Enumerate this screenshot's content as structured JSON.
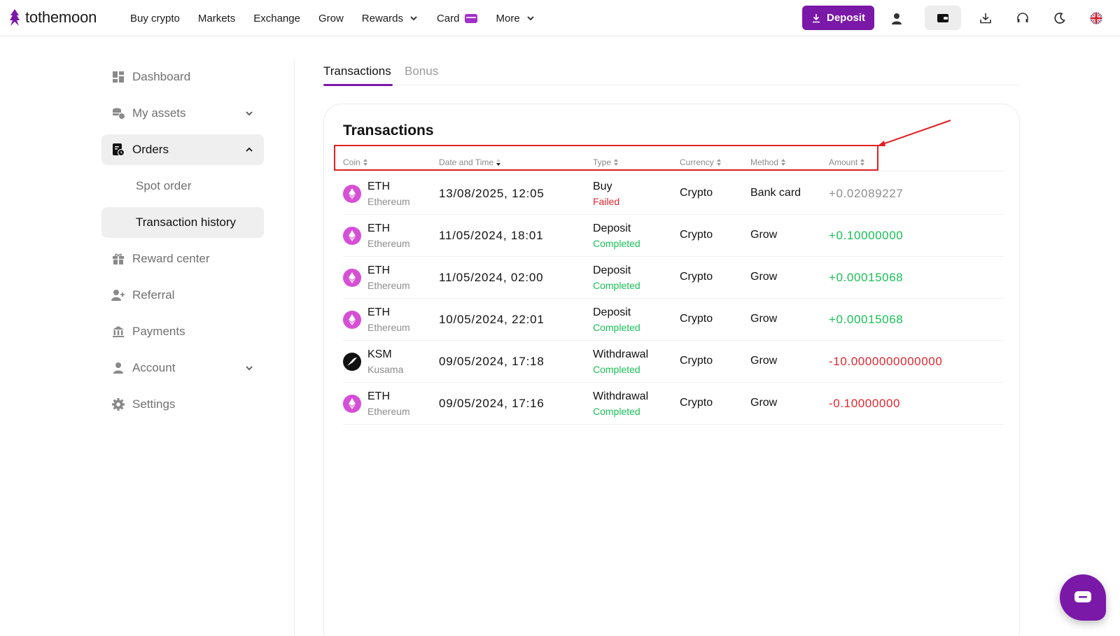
{
  "brand": {
    "name": "tothemoon"
  },
  "nav": {
    "items": [
      {
        "label": "Buy crypto"
      },
      {
        "label": "Markets"
      },
      {
        "label": "Exchange"
      },
      {
        "label": "Grow"
      },
      {
        "label": "Rewards"
      },
      {
        "label": "Card"
      },
      {
        "label": "More"
      }
    ],
    "deposit_label": "Deposit",
    "icons": [
      "user-icon",
      "wallet-icon",
      "download-icon",
      "headset-icon",
      "moon-icon",
      "uk-flag-icon"
    ]
  },
  "sidebar": {
    "items": [
      {
        "label": "Dashboard",
        "icon": "dashboard-icon"
      },
      {
        "label": "My assets",
        "icon": "coins-icon"
      },
      {
        "label": "Orders",
        "icon": "orders-icon"
      },
      {
        "label": "Spot order"
      },
      {
        "label": "Transaction history"
      },
      {
        "label": "Reward center",
        "icon": "gift-icon"
      },
      {
        "label": "Referral",
        "icon": "user-plus-icon"
      },
      {
        "label": "Payments",
        "icon": "bank-icon"
      },
      {
        "label": "Account",
        "icon": "user-icon"
      },
      {
        "label": "Settings",
        "icon": "gear-icon"
      }
    ]
  },
  "tabs": {
    "transactions": "Transactions",
    "bonus": "Bonus"
  },
  "panel": {
    "title": "Transactions",
    "columns": {
      "coin": "Coin",
      "date": "Date and Time",
      "type": "Type",
      "currency": "Currency",
      "method": "Method",
      "amount": "Amount"
    },
    "rows": [
      {
        "symbol": "ETH",
        "name": "Ethereum",
        "date": "13/08/2025, 12:05",
        "type": "Buy",
        "status": "Failed",
        "currency": "Crypto",
        "method": "Bank card",
        "amount": "+0.02089227"
      },
      {
        "symbol": "ETH",
        "name": "Ethereum",
        "date": "11/05/2024, 18:01",
        "type": "Deposit",
        "status": "Completed",
        "currency": "Crypto",
        "method": "Grow",
        "amount": "+0.10000000"
      },
      {
        "symbol": "ETH",
        "name": "Ethereum",
        "date": "11/05/2024, 02:00",
        "type": "Deposit",
        "status": "Completed",
        "currency": "Crypto",
        "method": "Grow",
        "amount": "+0.00015068"
      },
      {
        "symbol": "ETH",
        "name": "Ethereum",
        "date": "10/05/2024, 22:01",
        "type": "Deposit",
        "status": "Completed",
        "currency": "Crypto",
        "method": "Grow",
        "amount": "+0.00015068"
      },
      {
        "symbol": "KSM",
        "name": "Kusama",
        "date": "09/05/2024, 17:18",
        "type": "Withdrawal",
        "status": "Completed",
        "currency": "Crypto",
        "method": "Grow",
        "amount": "-10.0000000000000"
      },
      {
        "symbol": "ETH",
        "name": "Ethereum",
        "date": "09/05/2024, 17:16",
        "type": "Withdrawal",
        "status": "Completed",
        "currency": "Crypto",
        "method": "Grow",
        "amount": "-0.10000000"
      }
    ]
  },
  "colors": {
    "brand": "#7a18a8",
    "success": "#18c155",
    "error": "#e3262e",
    "annotation": "#e02020",
    "eth_icon": "#d64fd6"
  }
}
